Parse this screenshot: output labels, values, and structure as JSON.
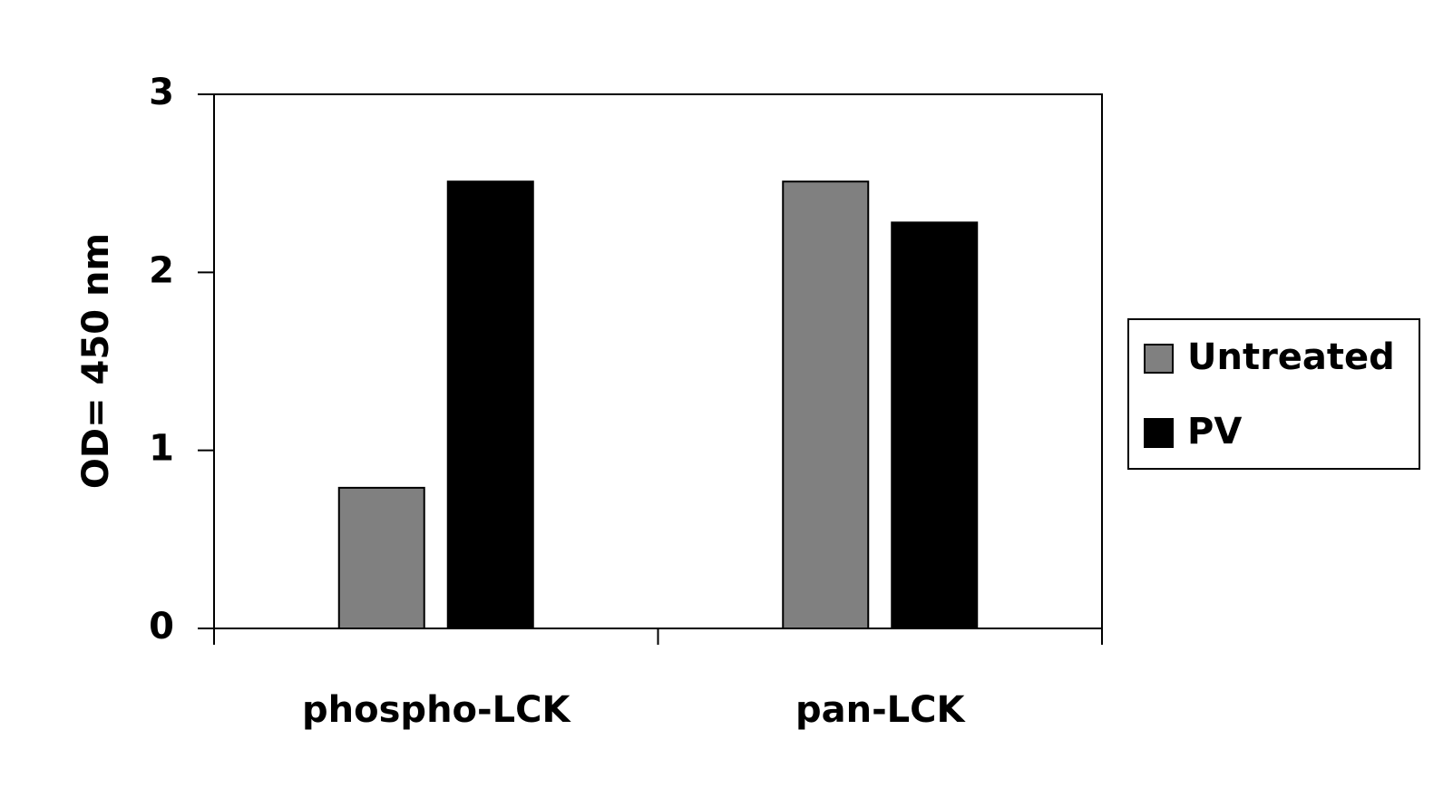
{
  "chart_data": {
    "type": "bar",
    "y_label": "OD= 450 nm",
    "categories": [
      "phospho-LCK",
      "pan-LCK"
    ],
    "series": [
      {
        "name": "Untreated",
        "color": "#808080",
        "values": [
          0.79,
          2.51
        ]
      },
      {
        "name": "PV",
        "color": "#000000",
        "values": [
          2.51,
          2.28
        ]
      }
    ],
    "ylim": [
      0,
      3
    ],
    "yticks": [
      0,
      1,
      2,
      3
    ],
    "legend": "right"
  }
}
